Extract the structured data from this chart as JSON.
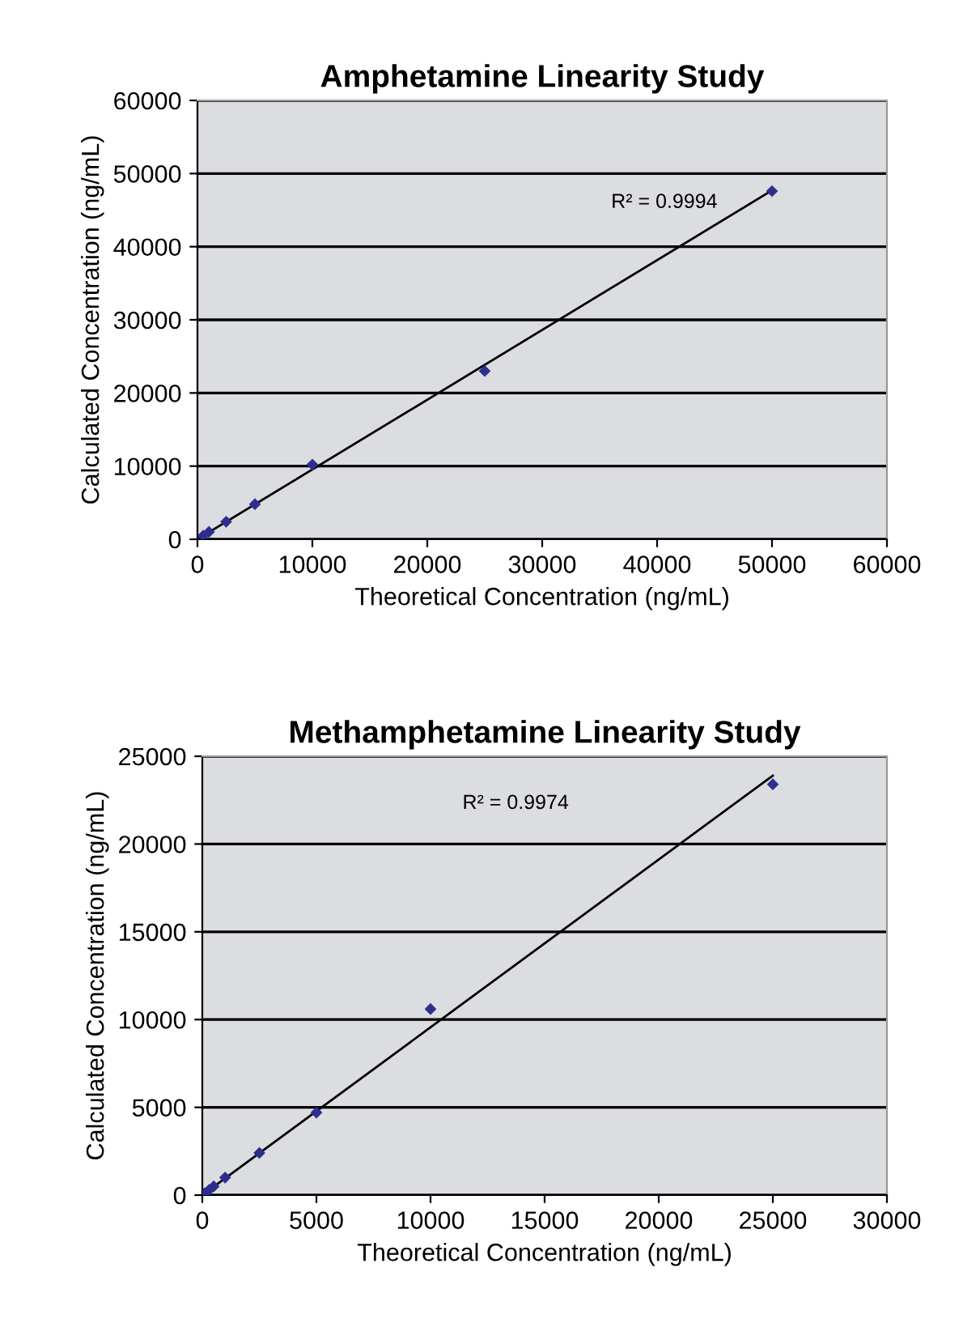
{
  "chart_data": [
    {
      "type": "scatter",
      "title": "Amphetamine Linearity Study",
      "xlabel": "Theoretical Concentration (ng/mL)",
      "ylabel": "Calculated Concentration (ng/mL)",
      "xlim": [
        0,
        60000
      ],
      "ylim": [
        0,
        60000
      ],
      "xticks": [
        0,
        10000,
        20000,
        30000,
        40000,
        50000,
        60000
      ],
      "yticks": [
        0,
        10000,
        20000,
        30000,
        40000,
        50000,
        60000
      ],
      "grid": "y",
      "legend": false,
      "marker": "diamond",
      "series": [
        {
          "color": "#2e2e8f",
          "x": [
            500,
            1000,
            2500,
            5000,
            10000,
            25000,
            50000
          ],
          "values": [
            500,
            1000,
            2400,
            4800,
            10200,
            23000,
            47600
          ]
        },
        {
          "type": "line",
          "color": "#000000",
          "marker": "none",
          "x": [
            0,
            50000
          ],
          "values": [
            0,
            47700
          ]
        }
      ],
      "annotations": [
        "R² = 0.9994"
      ]
    },
    {
      "type": "scatter",
      "title": "Methamphetamine Linearity Study",
      "xlabel": "Theoretical Concentration (ng/mL)",
      "ylabel": "Calculated Concentration (ng/mL)",
      "xlim": [
        0,
        30000
      ],
      "ylim": [
        0,
        25000
      ],
      "xticks": [
        0,
        5000,
        10000,
        15000,
        20000,
        25000,
        30000
      ],
      "yticks": [
        0,
        5000,
        10000,
        15000,
        20000,
        25000
      ],
      "grid": "y",
      "legend": false,
      "marker": "diamond",
      "series": [
        {
          "color": "#2e2e8f",
          "x": [
            100,
            300,
            500,
            1000,
            2500,
            5000,
            10000,
            25000
          ],
          "values": [
            100,
            300,
            500,
            1000,
            2400,
            4700,
            10600,
            23400
          ]
        },
        {
          "type": "line",
          "color": "#000000",
          "marker": "none",
          "x": [
            0,
            25000
          ],
          "values": [
            0,
            23900
          ]
        }
      ],
      "annotations": [
        "R² = 0.9974"
      ]
    }
  ]
}
